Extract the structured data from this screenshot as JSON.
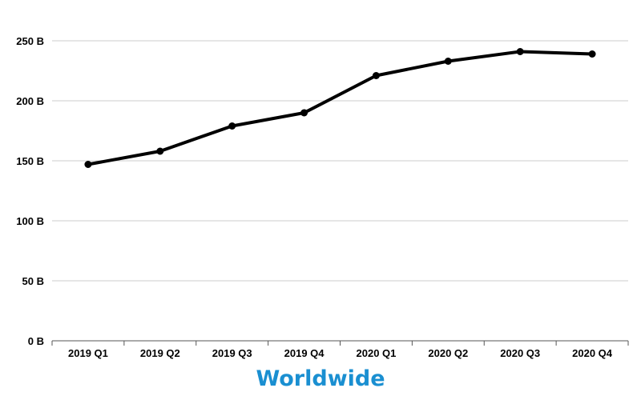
{
  "chart_data": {
    "type": "line",
    "title": "Worldwide",
    "xlabel": "",
    "ylabel": "",
    "categories": [
      "2019 Q1",
      "2019 Q2",
      "2019 Q3",
      "2019 Q4",
      "2020 Q1",
      "2020 Q2",
      "2020 Q3",
      "2020 Q4"
    ],
    "series": [
      {
        "values": [
          147,
          158,
          179,
          190,
          221,
          233,
          241,
          239
        ],
        "color": "#000000"
      }
    ],
    "ylim": [
      0,
      250
    ],
    "yticks": [
      0,
      50,
      100,
      150,
      200,
      250
    ],
    "ytick_labels": [
      "0 B",
      "50 B",
      "100 B",
      "150 B",
      "200 B",
      "250 B"
    ],
    "grid": true,
    "legend": "none",
    "title_color": "#1a8fd1"
  }
}
